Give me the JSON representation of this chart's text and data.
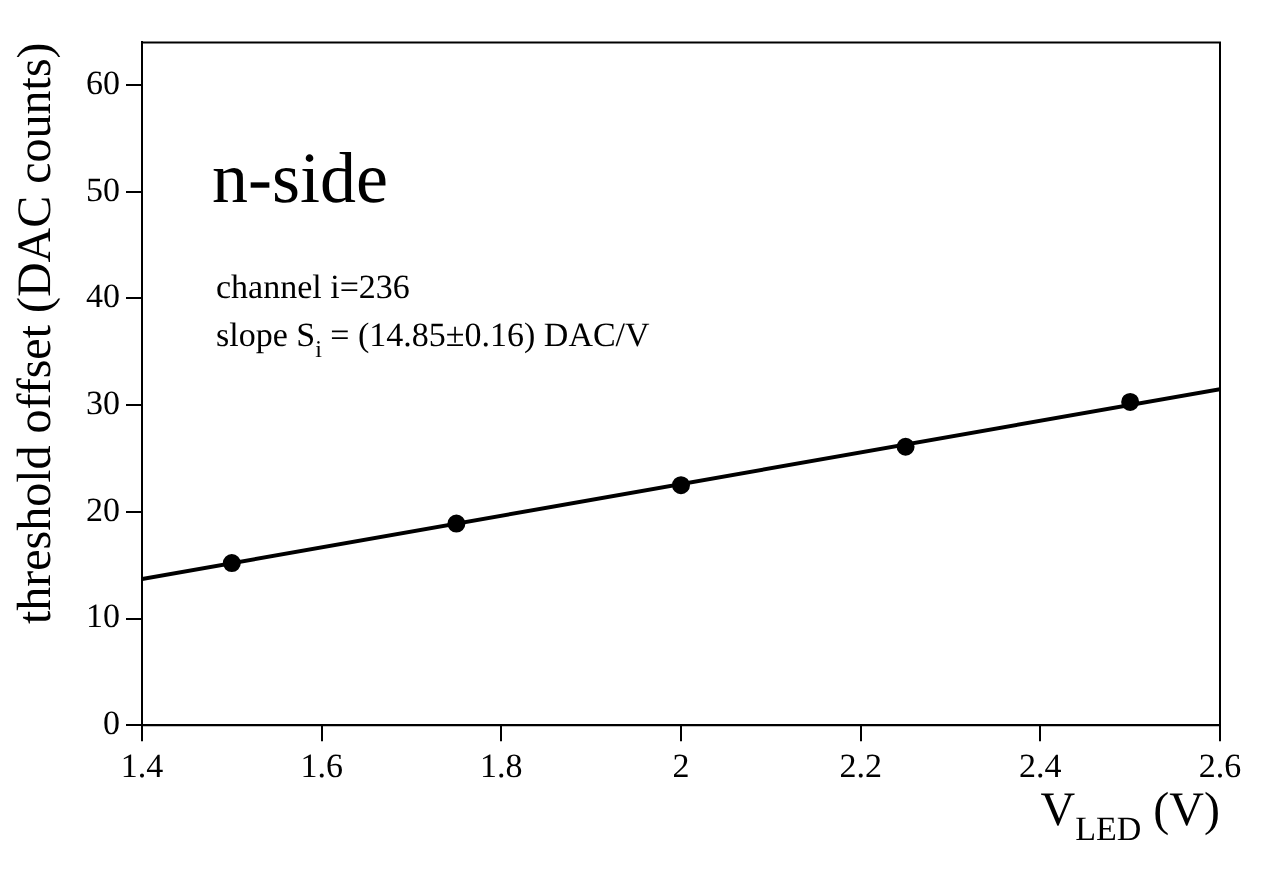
{
  "chart_data": {
    "type": "scatter",
    "title": "n-side",
    "xlabel": "V$_{LED}$ (V)",
    "ylabel": "threshold offset (DAC counts)",
    "annotations": [
      "channel i=236",
      "slope S$_{i}$ = (14.85±0.16) DAC/V"
    ],
    "x": [
      1.5,
      1.75,
      2.0,
      2.25,
      2.5
    ],
    "series": [
      {
        "color": "#000000",
        "values": [
          15.2,
          18.9,
          22.5,
          26.1,
          30.3
        ],
        "marker": "circle"
      },
      {
        "type": "line",
        "color": "#000000",
        "x": [
          1.4,
          2.6
        ],
        "values": [
          13.7,
          31.5
        ],
        "marker": "none",
        "line_style": "solid"
      }
    ],
    "xlim": [
      1.4,
      2.6
    ],
    "xticks": [
      1.4,
      1.6,
      1.8,
      2,
      2.2,
      2.4,
      2.6
    ],
    "ylim": [
      0,
      64
    ],
    "yticks": [
      0,
      10,
      20,
      30,
      40,
      50,
      60
    ],
    "grid": false,
    "legend": false
  }
}
